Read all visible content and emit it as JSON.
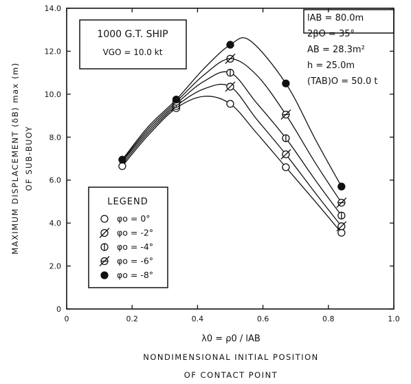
{
  "chart_data": {
    "type": "line",
    "xlabel": {
      "symbol": "λ0 = ρ0 / lAB",
      "line1": "NONDIMENSIONAL INITIAL POSITION",
      "line2": "OF CONTACT POINT"
    },
    "ylabel": {
      "line1": "MAXIMUM DISPLACEMENT (δB) max (m)",
      "line2": "OF SUB-BUOY"
    },
    "xlim": [
      0,
      1.0
    ],
    "ylim": [
      0,
      14.0
    ],
    "x_ticks": [
      "0",
      "0.2",
      "0.4",
      "0.6",
      "0.8",
      "1.0"
    ],
    "y_ticks": [
      "0",
      "2.0",
      "4.0",
      "6.0",
      "8.0",
      "10.0",
      "12.0",
      "14.0"
    ],
    "x_tick_values": [
      0,
      0.2,
      0.4,
      0.6,
      0.8,
      1.0
    ],
    "y_tick_values": [
      0,
      2,
      4,
      6,
      8,
      10,
      12,
      14
    ],
    "ship_box": {
      "line1": "1000 G.T. SHIP",
      "line2": "VGO = 10.0 kt"
    },
    "parameters": [
      "lAB = 80.0m",
      "2βO = 35°",
      "AB = 28.3m²",
      "h = 25.0m",
      "(TAB)O = 50.0 t"
    ],
    "legend": {
      "title": "LEGEND",
      "placement": "bottom-left"
    },
    "series": [
      {
        "name": "φo = 0°",
        "marker": "open-circle",
        "x": [
          0.17,
          0.335,
          0.5,
          0.67,
          0.84
        ],
        "y": [
          6.65,
          9.35,
          9.55,
          6.6,
          3.55
        ],
        "curve": [
          [
            0.17,
            6.65
          ],
          [
            0.25,
            8.1
          ],
          [
            0.335,
            9.35
          ],
          [
            0.42,
            9.9
          ],
          [
            0.5,
            9.55
          ],
          [
            0.58,
            8.2
          ],
          [
            0.67,
            6.6
          ],
          [
            0.76,
            5.0
          ],
          [
            0.84,
            3.55
          ]
        ]
      },
      {
        "name": "φo = -2°",
        "marker": "slash-circle",
        "x": [
          0.335,
          0.5,
          0.67,
          0.84
        ],
        "y": [
          9.45,
          10.35,
          7.2,
          3.85
        ],
        "curve": [
          [
            0.17,
            6.75
          ],
          [
            0.25,
            8.2
          ],
          [
            0.335,
            9.45
          ],
          [
            0.42,
            10.25
          ],
          [
            0.5,
            10.35
          ],
          [
            0.58,
            8.85
          ],
          [
            0.67,
            7.2
          ],
          [
            0.76,
            5.4
          ],
          [
            0.84,
            3.85
          ]
        ]
      },
      {
        "name": "φo = -4°",
        "marker": "bar-circle",
        "x": [
          0.335,
          0.5,
          0.67,
          0.84
        ],
        "y": [
          9.55,
          11.0,
          7.95,
          4.35
        ],
        "curve": [
          [
            0.17,
            6.85
          ],
          [
            0.25,
            8.3
          ],
          [
            0.335,
            9.55
          ],
          [
            0.42,
            10.6
          ],
          [
            0.5,
            11.0
          ],
          [
            0.58,
            9.6
          ],
          [
            0.67,
            7.95
          ],
          [
            0.76,
            6.0
          ],
          [
            0.84,
            4.35
          ]
        ]
      },
      {
        "name": "φo = -6°",
        "marker": "crossbar-circle",
        "x": [
          0.335,
          0.5,
          0.67,
          0.84
        ],
        "y": [
          9.65,
          11.65,
          9.05,
          4.95
        ],
        "curve": [
          [
            0.17,
            6.9
          ],
          [
            0.25,
            8.4
          ],
          [
            0.335,
            9.65
          ],
          [
            0.42,
            10.9
          ],
          [
            0.5,
            11.65
          ],
          [
            0.58,
            10.9
          ],
          [
            0.67,
            9.05
          ],
          [
            0.76,
            6.8
          ],
          [
            0.84,
            4.95
          ]
        ]
      },
      {
        "name": "φo = -8°",
        "marker": "filled-circle",
        "x": [
          0.17,
          0.335,
          0.5,
          0.67,
          0.84
        ],
        "y": [
          6.95,
          9.75,
          12.3,
          10.5,
          5.7
        ],
        "curve": [
          [
            0.17,
            6.95
          ],
          [
            0.25,
            8.5
          ],
          [
            0.335,
            9.75
          ],
          [
            0.42,
            11.2
          ],
          [
            0.5,
            12.3
          ],
          [
            0.56,
            12.5
          ],
          [
            0.67,
            10.5
          ],
          [
            0.76,
            7.9
          ],
          [
            0.84,
            5.7
          ]
        ]
      }
    ]
  }
}
